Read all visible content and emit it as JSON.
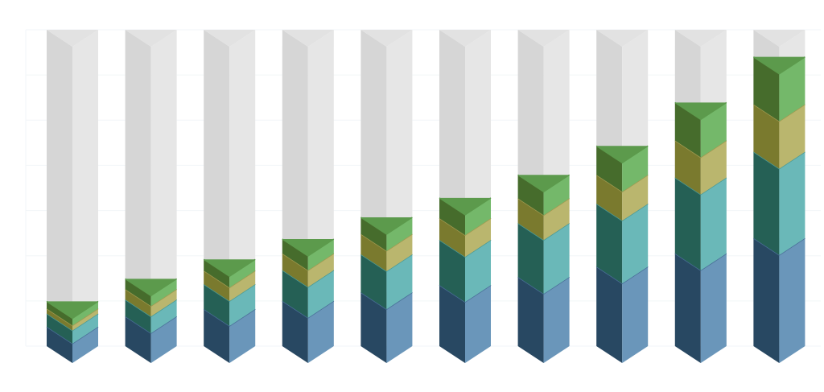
{
  "chart_data": {
    "type": "bar",
    "stacked": true,
    "style": "3d-isometric",
    "categories": [
      "",
      "",
      "",
      "",
      "",
      "",
      "",
      "",
      "",
      ""
    ],
    "ylim": [
      0,
      70
    ],
    "grid": true,
    "background_bar": true,
    "series": [
      {
        "values": [
          4.3,
          6.6,
          8.2,
          10.0,
          11.9,
          13.5,
          15.3,
          17.6,
          20.5,
          23.9
        ],
        "colors": {
          "dark": "#284862",
          "light": "#6a96ba",
          "edge": "#4a6e98"
        }
      },
      {
        "values": [
          2.9,
          3.7,
          5.5,
          6.8,
          8.4,
          10.0,
          11.9,
          13.9,
          16.8,
          19.1
        ],
        "colors": {
          "dark": "#256055",
          "light": "#6ab8b8",
          "edge": "#4a9a96"
        }
      },
      {
        "values": [
          1.1,
          2.3,
          3.0,
          3.7,
          4.5,
          4.8,
          5.5,
          6.4,
          8.2,
          10.5
        ],
        "colors": {
          "dark": "#7a7a2e",
          "light": "#bab66e",
          "edge": "#a09a50"
        }
      },
      {
        "values": [
          1.6,
          2.3,
          2.5,
          3.2,
          3.7,
          4.5,
          5.2,
          6.4,
          8.4,
          10.5
        ],
        "colors": {
          "dark": "#466c2c",
          "light": "#74b86a",
          "edge": "#5c9a4c"
        }
      }
    ],
    "background_colors": {
      "dark": "#d6d6d6",
      "light": "#e6e6e6",
      "top": "#e2e2e2"
    }
  }
}
